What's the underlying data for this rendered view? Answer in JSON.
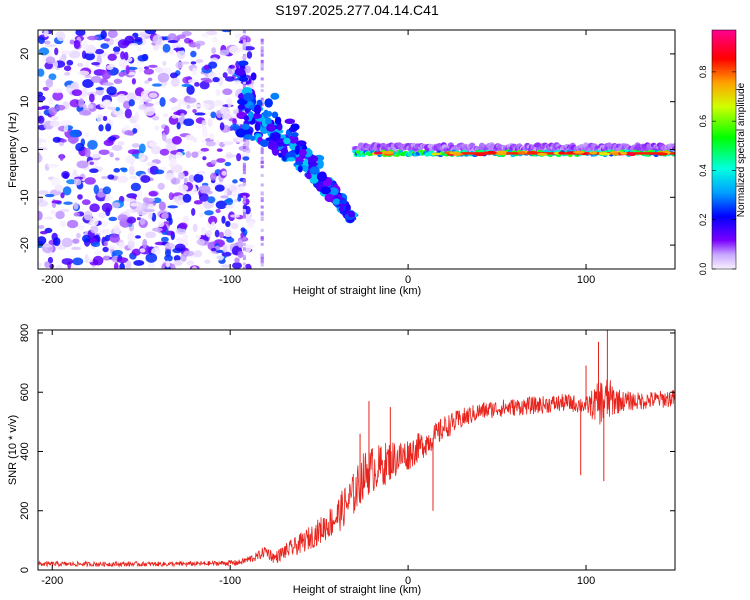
{
  "figure": {
    "title": "S197.2025.277.04.14.C41"
  },
  "chart_data": [
    {
      "type": "heatmap",
      "title": "",
      "xlabel": "Height of straight line (km)",
      "ylabel": "Frequency (Hz)",
      "xlim": [
        -208,
        150
      ],
      "ylim": [
        -25,
        25
      ],
      "xticks": [
        -200,
        -100,
        0,
        100
      ],
      "yticks": [
        -20,
        -10,
        0,
        10,
        20
      ],
      "colorbar": {
        "label": "Normalized spectral amplitude",
        "range": [
          0,
          0.97
        ],
        "ticks": [
          "0.0",
          "0.2",
          "0.4",
          "0.6",
          "0.8"
        ],
        "tick_values": [
          0,
          0.2,
          0.4,
          0.6,
          0.8
        ]
      },
      "features": [
        {
          "name": "diffuse noise",
          "x_range": [
            -208,
            -88
          ],
          "freq_range": [
            -25,
            25
          ],
          "amplitude": 0.15
        },
        {
          "name": "descending branch",
          "x_range": [
            -95,
            -30
          ],
          "freq_start": 7,
          "freq_end": -15,
          "amplitude": 0.3
        },
        {
          "name": "carrier line",
          "x_range": [
            -30,
            150
          ],
          "freq": -0.8,
          "amplitude": 0.85
        }
      ],
      "colors": {
        "scale": [
          "#ffffff",
          "#e6d8ff",
          "#8f3df0",
          "#3a00d6",
          "#0000ff",
          "#00d0ff",
          "#00ff60",
          "#ffff00",
          "#ff0000",
          "#ff0080"
        ]
      }
    },
    {
      "type": "line",
      "title": "",
      "xlabel": "Height of straight line (km)",
      "ylabel": "SNR (10 * v/v)",
      "xlim": [
        -208,
        150
      ],
      "ylim": [
        0,
        810
      ],
      "xticks": [
        -200,
        -100,
        0,
        100
      ],
      "yticks": [
        0,
        200,
        400,
        600,
        800
      ],
      "series": [
        {
          "name": "SNR",
          "color": "#e8231c",
          "x": [
            -208,
            -190,
            -170,
            -150,
            -130,
            -110,
            -95,
            -85,
            -80,
            -75,
            -70,
            -60,
            -50,
            -40,
            -35,
            -30,
            -25,
            -20,
            -15,
            -10,
            -5,
            0,
            5,
            10,
            15,
            20,
            30,
            40,
            50,
            60,
            70,
            80,
            90,
            100,
            105,
            110,
            115,
            120,
            130,
            140,
            150
          ],
          "values": [
            20,
            20,
            20,
            20,
            20,
            22,
            25,
            45,
            65,
            40,
            60,
            90,
            130,
            180,
            220,
            260,
            320,
            340,
            350,
            370,
            380,
            390,
            410,
            430,
            450,
            480,
            510,
            535,
            545,
            550,
            555,
            560,
            565,
            555,
            560,
            570,
            575,
            570,
            570,
            575,
            580
          ],
          "noise": [
            8,
            8,
            8,
            8,
            8,
            8,
            10,
            15,
            20,
            20,
            25,
            35,
            45,
            60,
            70,
            75,
            80,
            80,
            75,
            70,
            60,
            55,
            50,
            45,
            45,
            40,
            35,
            30,
            30,
            30,
            30,
            30,
            30,
            30,
            60,
            90,
            60,
            35,
            30,
            30,
            30
          ],
          "peaks": [
            {
              "x": -22,
              "y": 570
            },
            {
              "x": -10,
              "y": 550
            },
            {
              "x": -27,
              "y": 460
            },
            {
              "x": 14,
              "y": 200
            },
            {
              "x": 100,
              "y": 690
            },
            {
              "x": 107,
              "y": 770
            },
            {
              "x": 112,
              "y": 810
            },
            {
              "x": 97,
              "y": 320
            },
            {
              "x": 110,
              "y": 300
            }
          ]
        }
      ]
    }
  ]
}
